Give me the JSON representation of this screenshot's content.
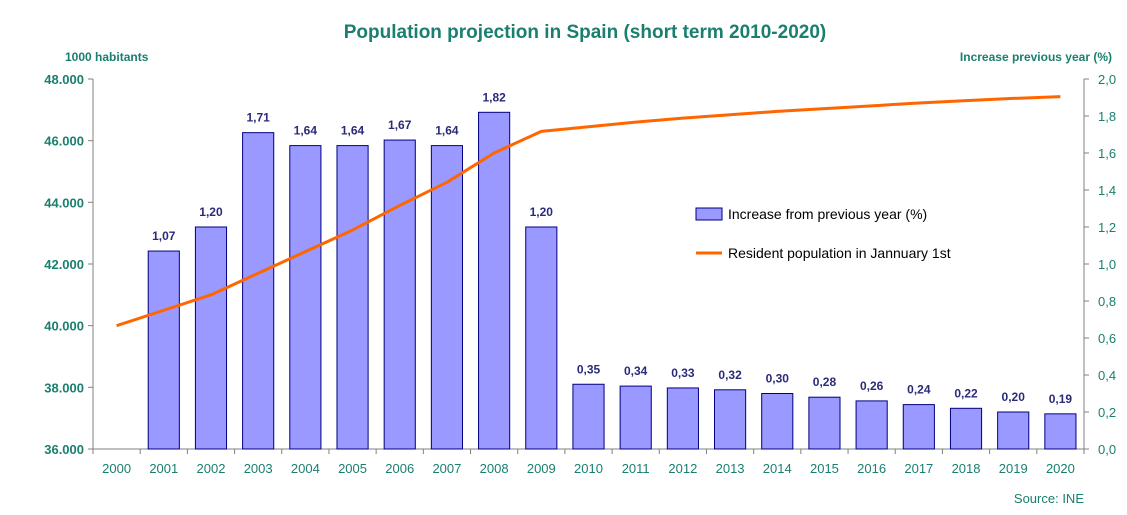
{
  "chart_data": {
    "type": "bar",
    "title": "Population projection in Spain (short term 2010-2020)",
    "left_axis_title": "1000 habitants",
    "right_axis_title": "Increase previous year (%)",
    "source": "Source: INE",
    "categories": [
      "2000",
      "2001",
      "2002",
      "2003",
      "2004",
      "2005",
      "2006",
      "2007",
      "2008",
      "2009",
      "2010",
      "2011",
      "2012",
      "2013",
      "2014",
      "2015",
      "2016",
      "2017",
      "2018",
      "2019",
      "2020"
    ],
    "left_ylim": [
      36000,
      48000
    ],
    "left_ticks": [
      36000,
      38000,
      40000,
      42000,
      44000,
      46000,
      48000
    ],
    "left_tick_labels": [
      "36.000",
      "38.000",
      "40.000",
      "42.000",
      "44.000",
      "46.000",
      "48.000"
    ],
    "right_ylim": [
      0,
      2.0
    ],
    "right_ticks": [
      0,
      0.2,
      0.4,
      0.6,
      0.8,
      1.0,
      1.2,
      1.4,
      1.6,
      1.8,
      2.0
    ],
    "right_tick_labels": [
      "0,0",
      "0,2",
      "0,4",
      "0,6",
      "0,8",
      "1,0",
      "1,2",
      "1,4",
      "1,6",
      "1,8",
      "2,0"
    ],
    "series": [
      {
        "name": "Increase from previous year (%)",
        "kind": "bar",
        "axis": "right",
        "color": "#9999ff",
        "values": [
          null,
          1.07,
          1.2,
          1.71,
          1.64,
          1.64,
          1.67,
          1.64,
          1.82,
          1.2,
          0.35,
          0.34,
          0.33,
          0.32,
          0.3,
          0.28,
          0.26,
          0.24,
          0.22,
          0.2,
          0.19
        ],
        "labels": [
          "",
          "1,07",
          "1,20",
          "1,71",
          "1,64",
          "1,64",
          "1,67",
          "1,64",
          "1,82",
          "1,20",
          "0,35",
          "0,34",
          "0,33",
          "0,32",
          "0,30",
          "0,28",
          "0,26",
          "0,24",
          "0,22",
          "0,20",
          "0,19"
        ]
      },
      {
        "name": "Resident population in Jannuary 1st",
        "kind": "line",
        "axis": "left",
        "color": "#ff6600",
        "values": [
          40000,
          40500,
          41000,
          41700,
          42400,
          43100,
          43900,
          44650,
          45600,
          46300,
          46450,
          46600,
          46730,
          46840,
          46950,
          47040,
          47130,
          47220,
          47300,
          47370,
          47430
        ]
      }
    ]
  }
}
